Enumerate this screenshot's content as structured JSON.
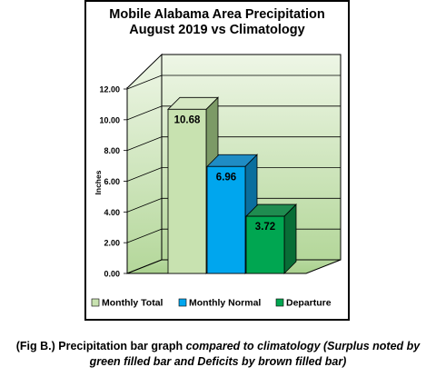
{
  "chart_data": {
    "type": "bar",
    "title_line1": "Mobile Alabama Area Precipitation",
    "title_line2": "August 2019 vs Climatology",
    "ylabel": "Inches",
    "xlabel": "",
    "ylim": [
      0,
      12
    ],
    "ytick_labels": [
      "0.00",
      "2.00",
      "4.00",
      "6.00",
      "8.00",
      "10.00",
      "12.00"
    ],
    "grid": true,
    "legend_position": "bottom",
    "categories": [
      "Monthly Total",
      "Monthly Normal",
      "Departure"
    ],
    "values": [
      10.68,
      6.96,
      3.72
    ],
    "data_labels": [
      "10.68",
      "6.96",
      "3.72"
    ],
    "colors": {
      "monthly_total": "#c8e2b0",
      "monthly_normal": "#00a6ee",
      "departure": "#00a651",
      "plot_background": "#b6d99c",
      "outer_background": "#ffffff"
    }
  },
  "caption": {
    "prefix": "(Fig B.) Precipitation bar graph ",
    "italic": "compared to climatology (Surplus noted by green filled bar and Deficits by brown filled bar)"
  }
}
